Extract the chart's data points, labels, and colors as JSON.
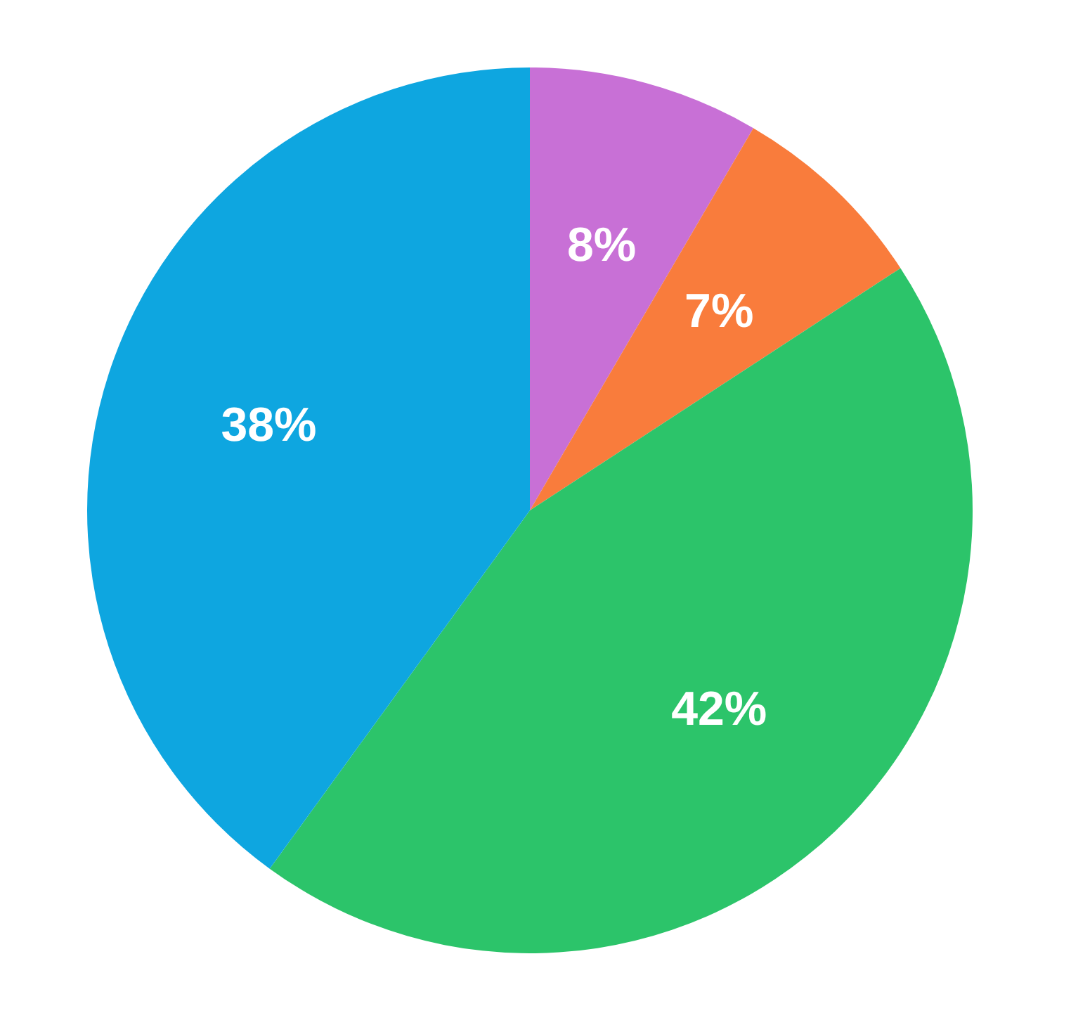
{
  "chart_data": {
    "type": "pie",
    "categories": [
      null,
      null,
      null,
      null
    ],
    "values": [
      8,
      7,
      42,
      38
    ],
    "value_labels": [
      "8%",
      "7%",
      "42%",
      "38%"
    ],
    "colors": [
      "#c870d6",
      "#f97c3c",
      "#2cc46a",
      "#0ea6e0"
    ],
    "legend": false
  }
}
